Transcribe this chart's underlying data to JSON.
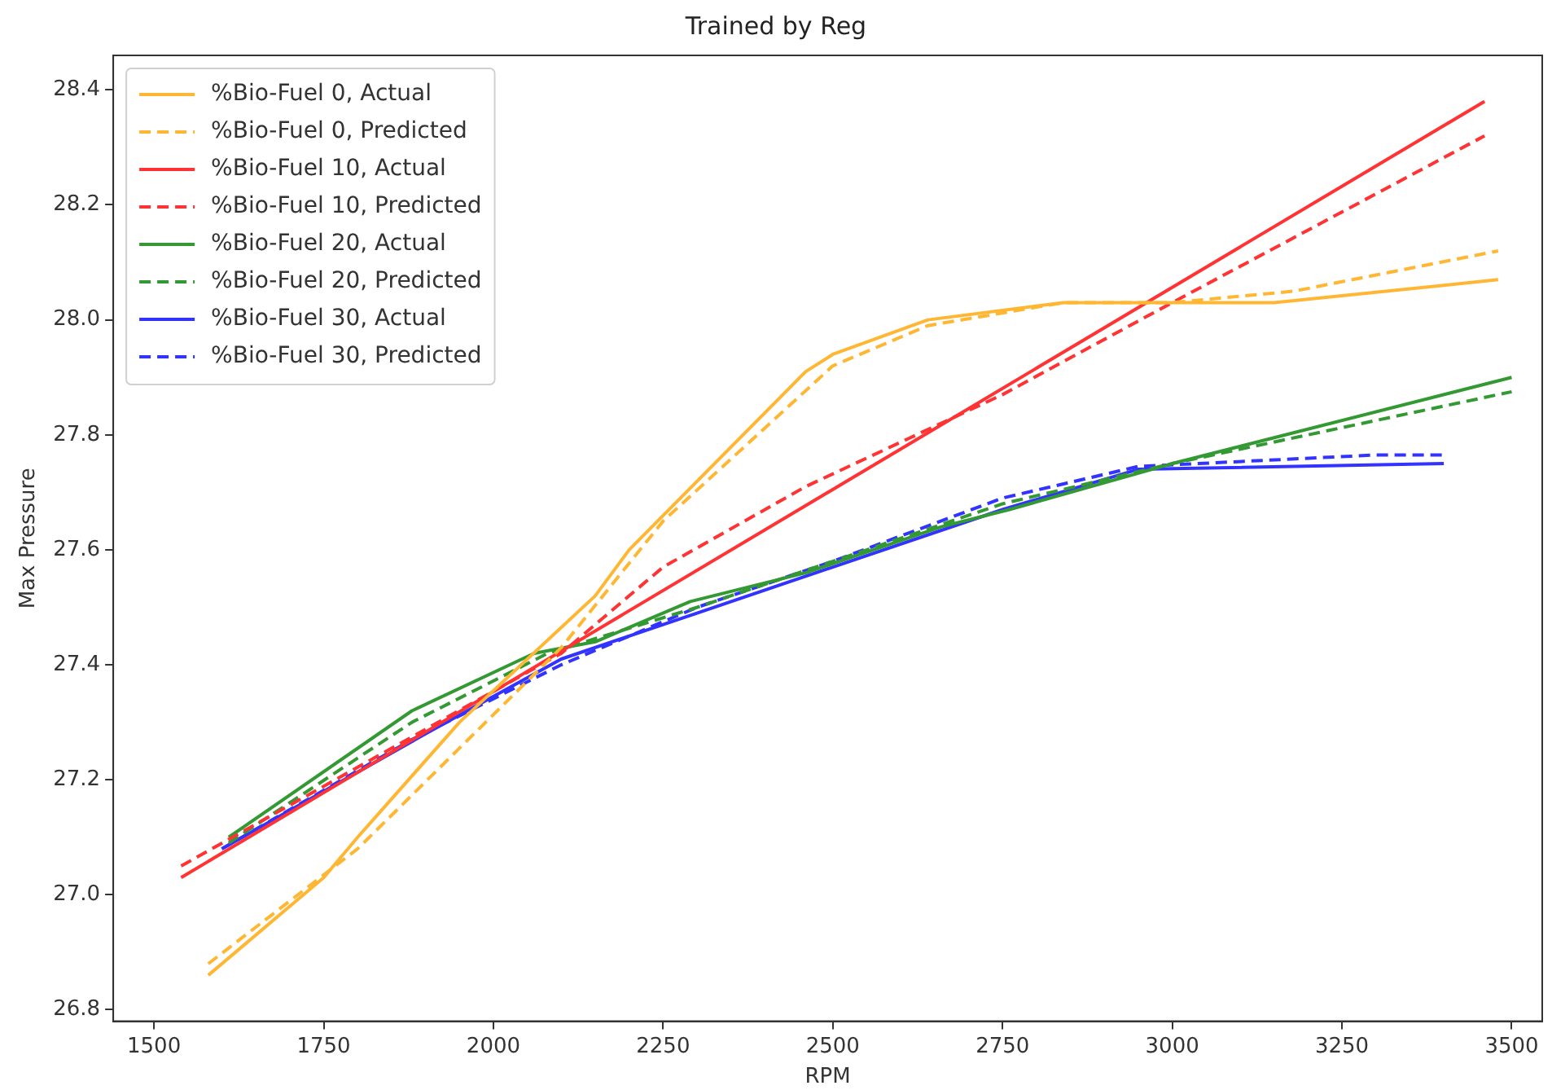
{
  "chart_data": {
    "type": "line",
    "title": "Trained by Reg",
    "xlabel": "RPM",
    "ylabel": "Max Pressure",
    "xlim": [
      1440,
      3545
    ],
    "ylim": [
      26.78,
      28.46
    ],
    "xticks": [
      1500,
      1750,
      2000,
      2250,
      2500,
      2750,
      3000,
      3250,
      3500
    ],
    "yticks": [
      {
        "value": 26.8,
        "label": "26.8"
      },
      {
        "value": 27.0,
        "label": "27.0"
      },
      {
        "value": 27.2,
        "label": "27.2"
      },
      {
        "value": 27.4,
        "label": "27.4"
      },
      {
        "value": 27.6,
        "label": "27.6"
      },
      {
        "value": 27.8,
        "label": "27.8"
      },
      {
        "value": 28.0,
        "label": "28.0"
      },
      {
        "value": 28.2,
        "label": "28.2"
      },
      {
        "value": 28.4,
        "label": "28.4"
      }
    ],
    "grid": false,
    "legend": "top left",
    "marker": "none",
    "series": [
      {
        "name": "%Bio-Fuel 0, Actual",
        "color": "#ffb733",
        "line_style": "solid",
        "x": [
          1580,
          1750,
          1800,
          1950,
          2150,
          2200,
          2460,
          2500,
          2640,
          2840,
          3000,
          3150,
          3400,
          3480
        ],
        "values": [
          26.86,
          27.03,
          27.1,
          27.3,
          27.52,
          27.6,
          27.91,
          27.94,
          28.0,
          28.03,
          28.03,
          28.03,
          28.06,
          28.07
        ]
      },
      {
        "name": "%Bio-Fuel 0, Predicted",
        "color": "#ffb733",
        "line_style": "dashed",
        "x": [
          1580,
          1800,
          2100,
          2250,
          2500,
          2640,
          2840,
          3000,
          3180,
          3480
        ],
        "values": [
          26.88,
          27.08,
          27.43,
          27.65,
          27.92,
          27.99,
          28.03,
          28.03,
          28.05,
          28.12
        ]
      },
      {
        "name": "%Bio-Fuel 10, Actual",
        "color": "#ff3333",
        "line_style": "solid",
        "x": [
          1540,
          3460
        ],
        "values": [
          27.03,
          28.38
        ]
      },
      {
        "name": "%Bio-Fuel 10, Predicted",
        "color": "#ff3333",
        "line_style": "dashed",
        "x": [
          1540,
          2100,
          2250,
          2460,
          2750,
          3000,
          3460
        ],
        "values": [
          27.05,
          27.42,
          27.57,
          27.71,
          27.87,
          28.03,
          28.32
        ]
      },
      {
        "name": "%Bio-Fuel 20, Actual",
        "color": "#339933",
        "line_style": "solid",
        "x": [
          1610,
          1880,
          2060,
          2150,
          2290,
          2460,
          2660,
          2760,
          3000,
          3500
        ],
        "values": [
          27.1,
          27.32,
          27.42,
          27.44,
          27.51,
          27.56,
          27.64,
          27.67,
          27.75,
          27.9
        ]
      },
      {
        "name": "%Bio-Fuel 20, Predicted",
        "color": "#339933",
        "line_style": "dashed",
        "x": [
          1610,
          1880,
          2080,
          2300,
          2750,
          3000,
          3500
        ],
        "values": [
          27.09,
          27.3,
          27.42,
          27.5,
          27.68,
          27.75,
          27.875
        ]
      },
      {
        "name": "%Bio-Fuel 30, Actual",
        "color": "#3333ff",
        "line_style": "solid",
        "x": [
          1600,
          1900,
          2100,
          2300,
          2500,
          2750,
          2950,
          3400
        ],
        "values": [
          27.08,
          27.28,
          27.41,
          27.49,
          27.57,
          27.67,
          27.74,
          27.75
        ]
      },
      {
        "name": "%Bio-Fuel 30, Predicted",
        "color": "#3333ff",
        "line_style": "dashed",
        "x": [
          1600,
          1880,
          2100,
          2300,
          2500,
          2750,
          2950,
          3300,
          3400
        ],
        "values": [
          27.08,
          27.27,
          27.4,
          27.5,
          27.58,
          27.69,
          27.745,
          27.765,
          27.765
        ]
      }
    ]
  }
}
